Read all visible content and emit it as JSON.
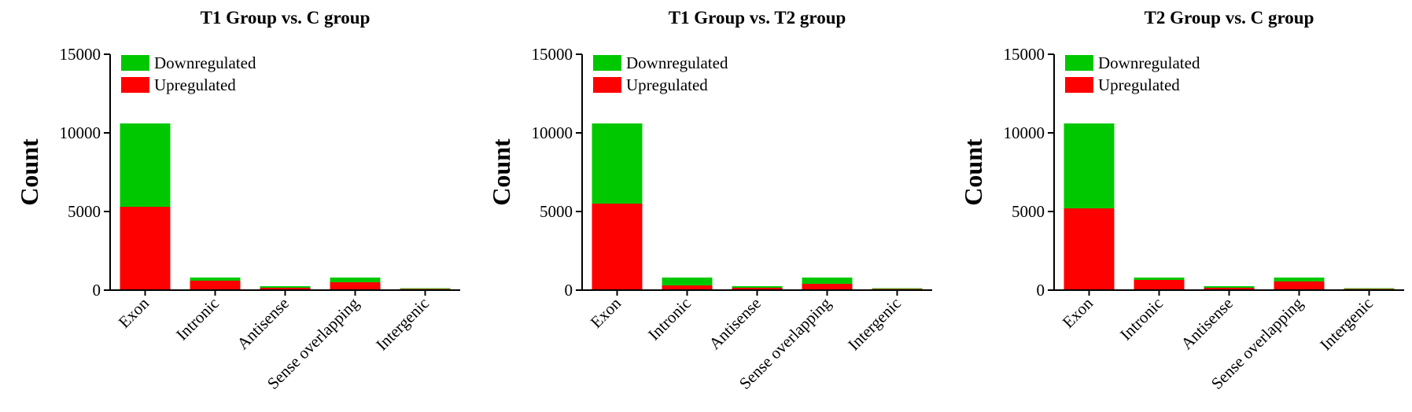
{
  "chart_data": [
    {
      "type": "bar",
      "title": "T1 Group vs. C group",
      "y_label": "Count",
      "categories": [
        "Exon",
        "Intronic",
        "Antisense",
        "Sense overlapping",
        "Intergenic"
      ],
      "series": [
        {
          "name": "Downregulated",
          "color": "#00c800",
          "values": [
            5300,
            200,
            100,
            300,
            40
          ]
        },
        {
          "name": "Upregulated",
          "color": "#ff0000",
          "values": [
            5300,
            600,
            150,
            500,
            80
          ]
        }
      ],
      "ylim": [
        0,
        15000
      ],
      "yticks": [
        0,
        5000,
        10000,
        15000
      ]
    },
    {
      "type": "bar",
      "title": "T1 Group vs. T2 group",
      "y_label": "Count",
      "categories": [
        "Exon",
        "Intronic",
        "Antisense",
        "Sense overlapping",
        "Intergenic"
      ],
      "series": [
        {
          "name": "Downregulated",
          "color": "#00c800",
          "values": [
            5100,
            500,
            100,
            400,
            40
          ]
        },
        {
          "name": "Upregulated",
          "color": "#ff0000",
          "values": [
            5500,
            300,
            150,
            400,
            80
          ]
        }
      ],
      "ylim": [
        0,
        15000
      ],
      "yticks": [
        0,
        5000,
        10000,
        15000
      ]
    },
    {
      "type": "bar",
      "title": "T2 Group vs. C group",
      "y_label": "Count",
      "categories": [
        "Exon",
        "Intronic",
        "Antisense",
        "Sense overlapping",
        "Intergenic"
      ],
      "series": [
        {
          "name": "Downregulated",
          "color": "#00c800",
          "values": [
            5400,
            150,
            100,
            250,
            40
          ]
        },
        {
          "name": "Upregulated",
          "color": "#ff0000",
          "values": [
            5200,
            650,
            150,
            550,
            80
          ]
        }
      ],
      "ylim": [
        0,
        15000
      ],
      "yticks": [
        0,
        5000,
        10000,
        15000
      ]
    }
  ]
}
